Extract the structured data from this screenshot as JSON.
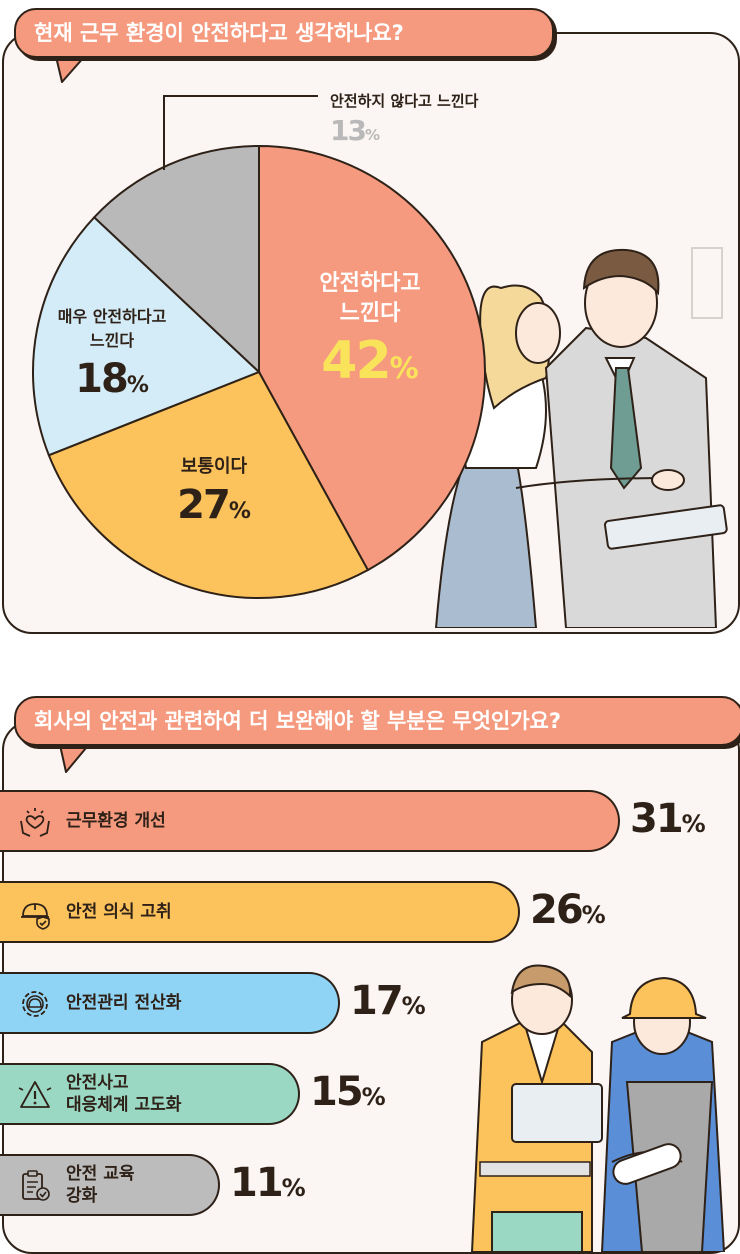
{
  "section1": {
    "title": "현재 근무 환경이 안전하다고 생각하나요?"
  },
  "section2": {
    "title": "회사의 안전과 관련하여 더 보완해야 할 부분은 무엇인가요?"
  },
  "chart_data": [
    {
      "type": "pie",
      "title": "현재 근무 환경이 안전하다고 생각하나요?",
      "slices": [
        {
          "label": "안전하다고 느낀다",
          "value": 42,
          "color": "#f59a7e",
          "value_color": "#f9e35a"
        },
        {
          "label": "보통이다",
          "value": 27,
          "color": "#fcc35c",
          "value_color": "#2e2118"
        },
        {
          "label": "매우 안전하다고 느낀다",
          "value": 18,
          "color": "#d4ecf7",
          "value_color": "#2e2118"
        },
        {
          "label": "안전하지 않다고 느낀다",
          "value": 13,
          "color": "#b9b9b9",
          "value_color": "#b9b9b9"
        }
      ],
      "unit": "%"
    },
    {
      "type": "bar",
      "orientation": "horizontal",
      "title": "회사의 안전과 관련하여 더 보완해야 할 부분은 무엇인가요?",
      "categories": [
        "근무환경 개선",
        "안전 의식 고취",
        "안전관리 전산화",
        "안전사고 대응체계 고도화",
        "안전 교육 강화"
      ],
      "display_labels": [
        "근무환경 개선",
        "안전 의식 고취",
        "안전관리 전산화",
        "안전사고\n대응체계 고도화",
        "안전 교육\n강화"
      ],
      "values": [
        31,
        26,
        17,
        15,
        11
      ],
      "colors": [
        "#f59a7e",
        "#fcc35c",
        "#8fd3f5",
        "#9ad8c4",
        "#bcbcbc"
      ],
      "icons": [
        "hands-heart-icon",
        "helmet-check-icon",
        "gear-helmet-icon",
        "warning-triangle-icon",
        "clipboard-check-icon"
      ],
      "unit": "%"
    }
  ]
}
